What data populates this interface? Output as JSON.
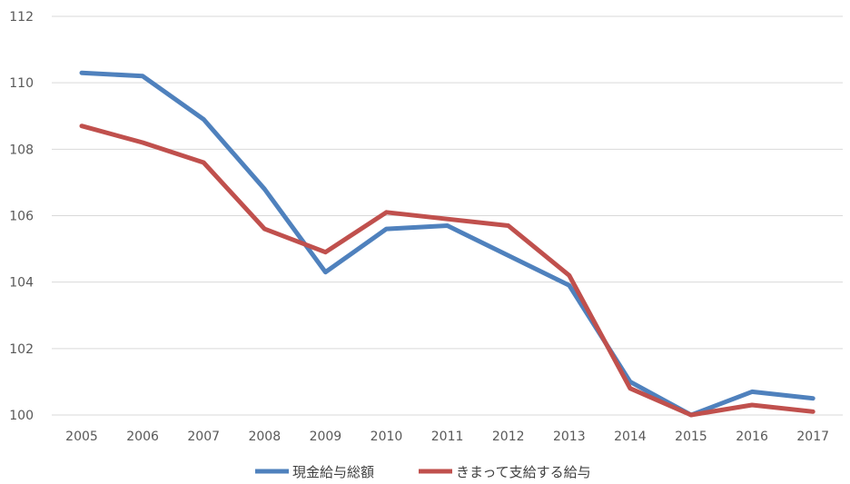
{
  "chart_data": {
    "type": "line",
    "title": "",
    "xlabel": "",
    "ylabel": "",
    "categories": [
      "2005",
      "2006",
      "2007",
      "2008",
      "2009",
      "2010",
      "2011",
      "2012",
      "2013",
      "2014",
      "2015",
      "2016",
      "2017"
    ],
    "ylim": [
      100,
      112
    ],
    "yticks": [
      100,
      102,
      104,
      106,
      108,
      110,
      112
    ],
    "grid": true,
    "legend_position": "bottom",
    "series": [
      {
        "name": "現金給与総額",
        "color": "#4f81bd",
        "values": [
          110.3,
          110.2,
          108.9,
          106.8,
          104.3,
          105.6,
          105.7,
          104.8,
          103.9,
          101.0,
          100.0,
          100.7,
          100.5
        ]
      },
      {
        "name": "きまって支給する給与",
        "color": "#c0504d",
        "values": [
          108.7,
          108.2,
          107.6,
          105.6,
          104.9,
          106.1,
          105.9,
          105.7,
          104.2,
          100.8,
          100.0,
          100.3,
          100.1
        ]
      }
    ]
  }
}
